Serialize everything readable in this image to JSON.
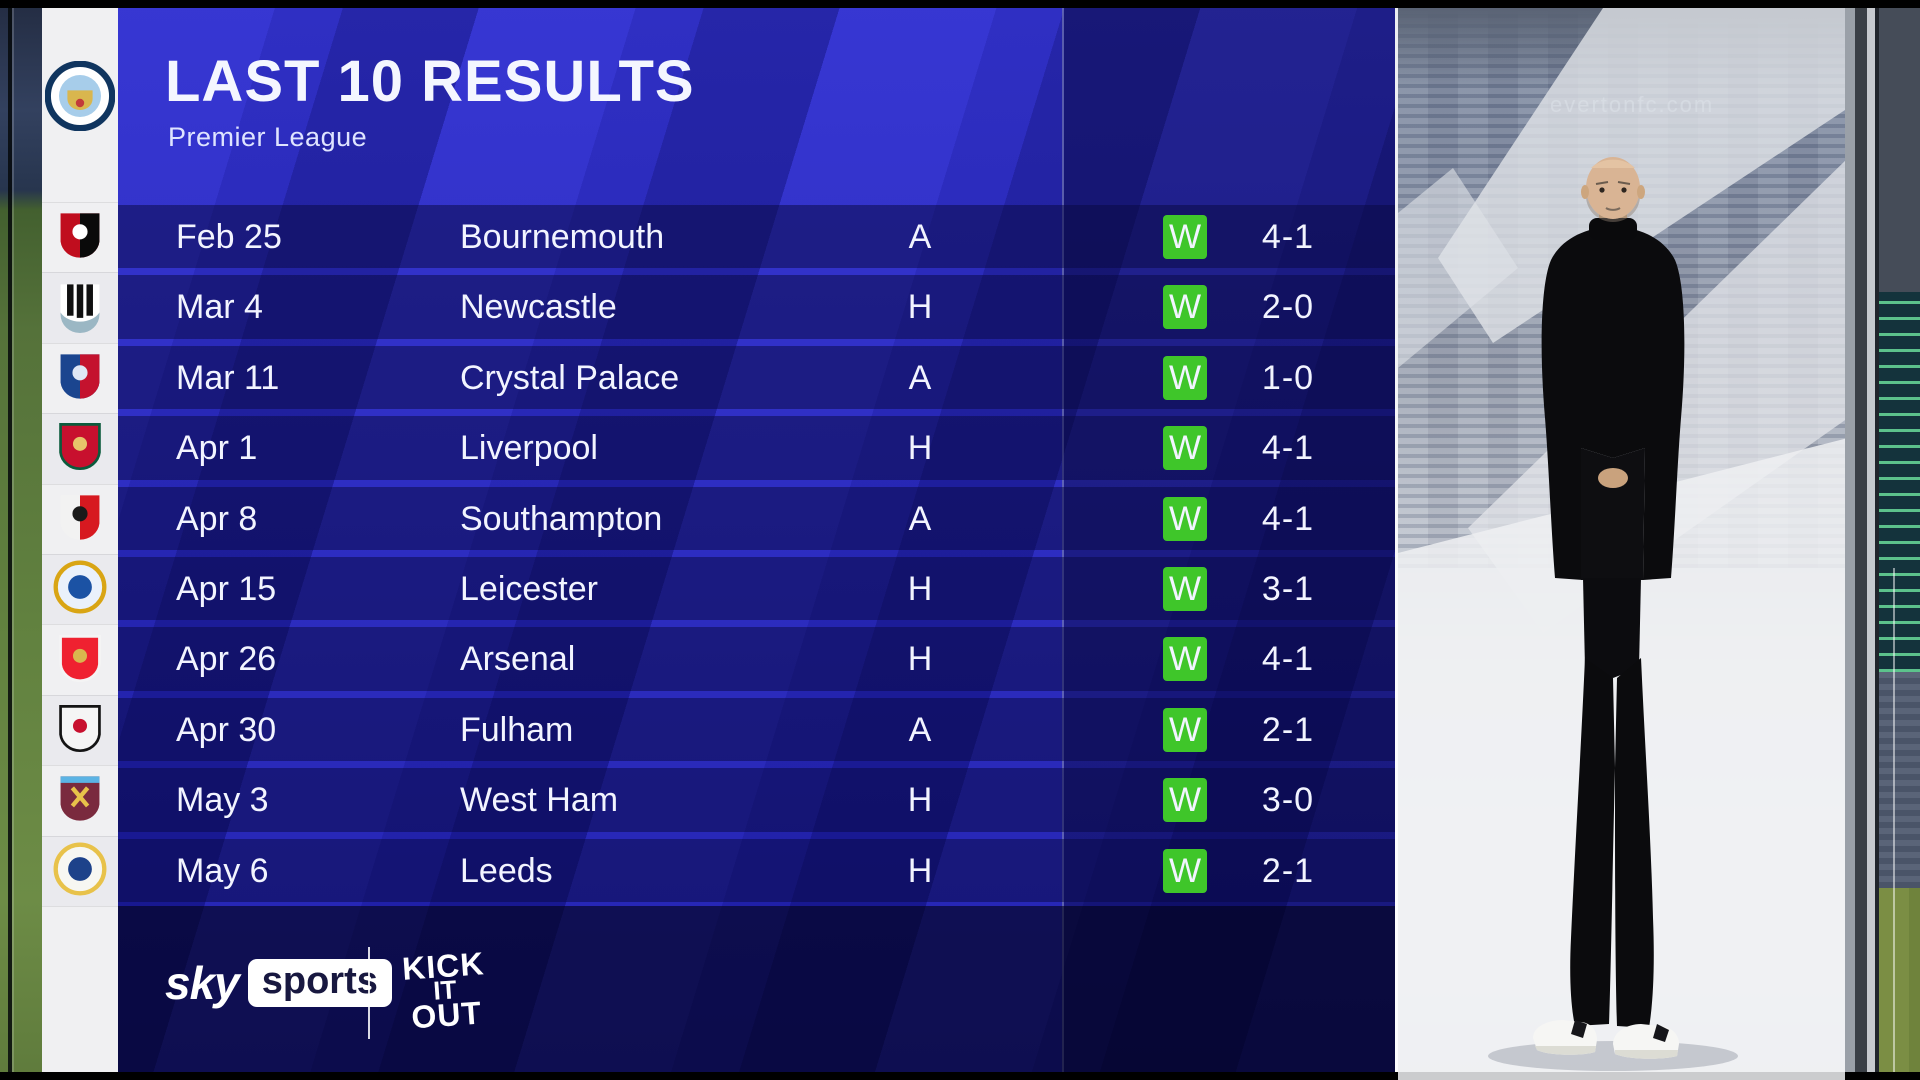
{
  "header": {
    "title": "LAST 10 RESULTS",
    "subtitle": "Premier League"
  },
  "team": {
    "club": "Manchester City"
  },
  "results_table": {
    "rows": [
      {
        "date": "Feb 25",
        "opponent": "Bournemouth",
        "venue": "A",
        "result": "W",
        "score": "4-1"
      },
      {
        "date": "Mar 4",
        "opponent": "Newcastle",
        "venue": "H",
        "result": "W",
        "score": "2-0"
      },
      {
        "date": "Mar 11",
        "opponent": "Crystal Palace",
        "venue": "A",
        "result": "W",
        "score": "1-0"
      },
      {
        "date": "Apr 1",
        "opponent": "Liverpool",
        "venue": "H",
        "result": "W",
        "score": "4-1"
      },
      {
        "date": "Apr 8",
        "opponent": "Southampton",
        "venue": "A",
        "result": "W",
        "score": "4-1"
      },
      {
        "date": "Apr 15",
        "opponent": "Leicester",
        "venue": "H",
        "result": "W",
        "score": "3-1"
      },
      {
        "date": "Apr 26",
        "opponent": "Arsenal",
        "venue": "H",
        "result": "W",
        "score": "4-1"
      },
      {
        "date": "Apr 30",
        "opponent": "Fulham",
        "venue": "A",
        "result": "W",
        "score": "2-1"
      },
      {
        "date": "May 3",
        "opponent": "West Ham",
        "venue": "H",
        "result": "W",
        "score": "3-0"
      },
      {
        "date": "May 6",
        "opponent": "Leeds",
        "venue": "H",
        "result": "W",
        "score": "2-1"
      }
    ]
  },
  "crests": {
    "top": {
      "club": "Manchester City",
      "shape": "mc",
      "colors": [
        "#10355f",
        "#a7cdea",
        "#d9b64e",
        "#c23a3a"
      ]
    },
    "rows": [
      {
        "club": "Bournemouth",
        "shape": "split",
        "colors": [
          "#c00d1e",
          "#0a0a0a",
          "#ffffff"
        ]
      },
      {
        "club": "Newcastle",
        "shape": "stripes",
        "colors": [
          "#101010",
          "#ffffff",
          "#9bb7c4"
        ]
      },
      {
        "club": "Crystal Palace",
        "shape": "split",
        "colors": [
          "#1b458f",
          "#c4122e",
          "#dfe7f5"
        ]
      },
      {
        "club": "Liverpool",
        "shape": "shield",
        "colors": [
          "#c8102e",
          "#0b5b3c",
          "#e7c46a"
        ]
      },
      {
        "club": "Southampton",
        "shape": "split",
        "colors": [
          "#f2f2f2",
          "#d71920",
          "#1a1a1a"
        ]
      },
      {
        "club": "Leicester",
        "shape": "ring",
        "colors": [
          "#d9a514",
          "#eaf1fb",
          "#1b52a4"
        ]
      },
      {
        "club": "Arsenal",
        "shape": "shield",
        "colors": [
          "#ef2130",
          "#f4f4f4",
          "#d9b64e"
        ]
      },
      {
        "club": "Fulham",
        "shape": "shield",
        "colors": [
          "#f5f5f5",
          "#141414",
          "#c8102e"
        ]
      },
      {
        "club": "West Ham",
        "shape": "hammers",
        "colors": [
          "#7a2a3e",
          "#5bb3e4",
          "#e8c24a"
        ]
      },
      {
        "club": "Leeds",
        "shape": "ring",
        "colors": [
          "#e8c24a",
          "#f7f7f2",
          "#1d428a"
        ]
      }
    ]
  },
  "branding": {
    "sky": "sky",
    "sports": "sports",
    "kick_it_out_lines": [
      "KICK",
      "IT",
      "OUT"
    ]
  },
  "photo": {
    "watermark": "evertonfc.com"
  },
  "colors": {
    "win_green": "#3fc62a",
    "panel_blue": "#1d1db4",
    "stripe_bright": "#2c2cd0",
    "stripe_dark": "#1a1aa4",
    "sidebar_bg": "#f0f0f2"
  }
}
